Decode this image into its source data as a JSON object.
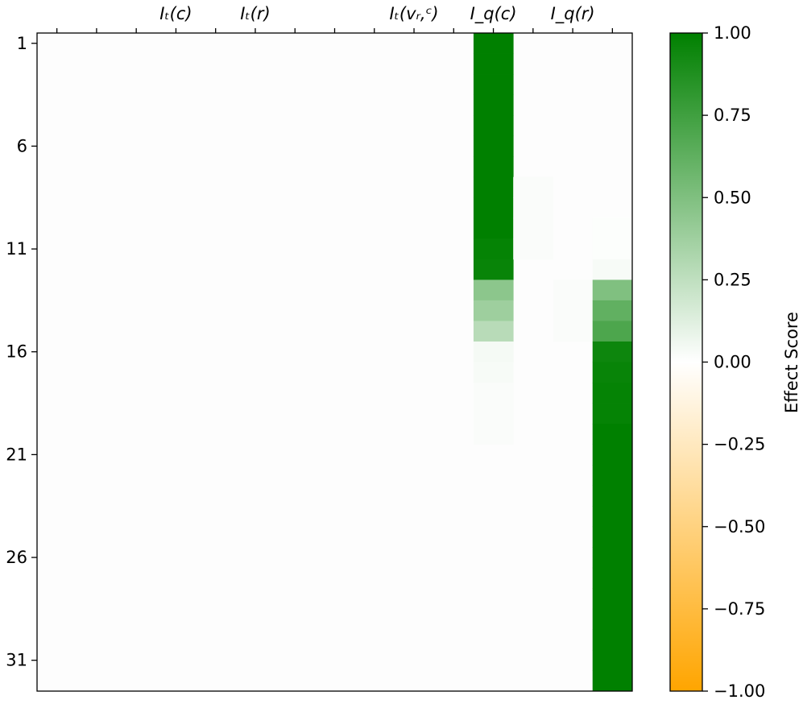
{
  "chart_data": {
    "type": "heatmap",
    "title": "",
    "xlabel": "",
    "ylabel": "",
    "x_ticks_top": true,
    "n_columns": 15,
    "n_rows": 32,
    "x_tick_labels": [
      {
        "col": 3,
        "text": "Iₜ(c)"
      },
      {
        "col": 5,
        "text": "Iₜ(r)"
      },
      {
        "col": 9,
        "text": "Iₜ(vᵣ,ᶜ)"
      },
      {
        "col": 11,
        "text": "I_q(c)"
      },
      {
        "col": 13,
        "text": "I_q(r)"
      }
    ],
    "y_tick_labels": [
      "1",
      "6",
      "11",
      "16",
      "21",
      "26",
      "31"
    ],
    "y_tick_values": [
      1,
      6,
      11,
      16,
      21,
      26,
      31
    ],
    "colorbar": {
      "label": "Effect Score",
      "min": -1.0,
      "max": 1.0,
      "tick_values": [
        1.0,
        0.75,
        0.5,
        0.25,
        0.0,
        -0.25,
        -0.5,
        -0.75,
        -1.0
      ],
      "tick_labels": [
        "1.00",
        "0.75",
        "0.50",
        "0.25",
        "0.00",
        "−0.25",
        "−0.50",
        "−0.75",
        "−1.00"
      ],
      "colors": [
        "#FFA500",
        "#FFFFFF",
        "#008000"
      ]
    },
    "columns": [
      {
        "col": 11,
        "values": [
          1,
          1,
          1,
          1,
          1,
          1,
          1,
          1,
          1,
          1,
          0.98,
          0.97,
          0.45,
          0.38,
          0.28,
          0.04,
          0.03,
          0.02,
          0.02,
          0.02,
          0,
          0,
          0,
          0,
          0,
          0,
          0,
          0,
          0,
          0,
          0,
          0
        ]
      },
      {
        "col": 12,
        "values": [
          0,
          0,
          0,
          0,
          0,
          0,
          0,
          0.02,
          0.02,
          0.02,
          0.02,
          0,
          0,
          0,
          0,
          0,
          0,
          0,
          0,
          0,
          0,
          0,
          0,
          0,
          0,
          0,
          0,
          0,
          0,
          0,
          0,
          0
        ]
      },
      {
        "col": 13,
        "values": [
          0,
          0,
          0,
          0,
          0,
          0,
          0,
          0,
          0,
          0,
          0,
          0,
          0.02,
          0.02,
          0.02,
          0,
          0,
          0,
          0,
          0,
          0,
          0,
          0,
          0,
          0,
          0,
          0,
          0,
          0,
          0,
          0,
          0
        ]
      },
      {
        "col": 14,
        "values": [
          0,
          0,
          0,
          0,
          0,
          0,
          0,
          0,
          0,
          0.01,
          0.01,
          0.03,
          0.5,
          0.62,
          0.7,
          0.95,
          0.97,
          0.98,
          0.98,
          1,
          1,
          1,
          1,
          1,
          1,
          1,
          1,
          1,
          1,
          1,
          1,
          1
        ]
      }
    ]
  }
}
